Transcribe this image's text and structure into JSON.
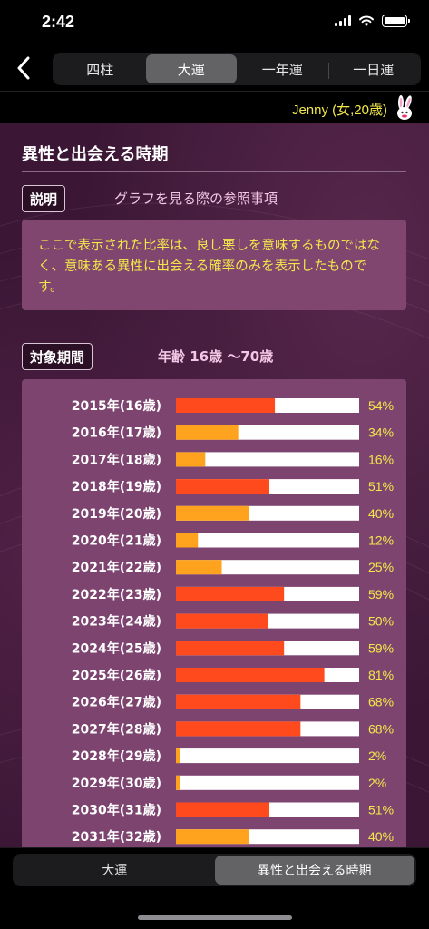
{
  "status": {
    "time": "2:42"
  },
  "nav": {
    "tabs": [
      {
        "label": "四柱",
        "active": false
      },
      {
        "label": "大運",
        "active": true
      },
      {
        "label": "一年運",
        "active": false
      },
      {
        "label": "一日運",
        "active": false
      }
    ]
  },
  "user": {
    "label": "Jenny (女,20歳)"
  },
  "section": {
    "title": "異性と出会える時期"
  },
  "explain": {
    "tag": "説明",
    "desc": "グラフを見る際の参照事項",
    "note": "ここで表示された比率は、良し悪しを意味するものではなく、意味ある異性に出会える確率のみを表示したものです。"
  },
  "period": {
    "tag": "対象期間",
    "value": "年齢 16歳 ～70歳"
  },
  "colors": {
    "high": "#ff4a1e",
    "low": "#ffa21e",
    "track": "#ffffff",
    "percent_text": "#f3e84a"
  },
  "chart_data": {
    "type": "bar",
    "orientation": "horizontal",
    "categories": [
      "2015年(16歳)",
      "2016年(17歳)",
      "2017年(18歳)",
      "2018年(19歳)",
      "2019年(20歳)",
      "2020年(21歳)",
      "2021年(22歳)",
      "2022年(23歳)",
      "2023年(24歳)",
      "2024年(25歳)",
      "2025年(26歳)",
      "2026年(27歳)",
      "2027年(28歳)",
      "2028年(29歳)",
      "2029年(30歳)",
      "2030年(31歳)",
      "2031年(32歳)"
    ],
    "values": [
      54,
      34,
      16,
      51,
      40,
      12,
      25,
      59,
      50,
      59,
      81,
      68,
      68,
      2,
      2,
      51,
      40
    ],
    "value_labels": [
      "54%",
      "34%",
      "16%",
      "51%",
      "40%",
      "12%",
      "25%",
      "59%",
      "50%",
      "59%",
      "81%",
      "68%",
      "68%",
      "2%",
      "2%",
      "51%",
      "40%"
    ],
    "xlim": [
      0,
      100
    ],
    "high_threshold": 50
  },
  "bottom": {
    "tabs": [
      {
        "label": "大運",
        "active": false
      },
      {
        "label": "異性と出会える時期",
        "active": true
      }
    ]
  }
}
